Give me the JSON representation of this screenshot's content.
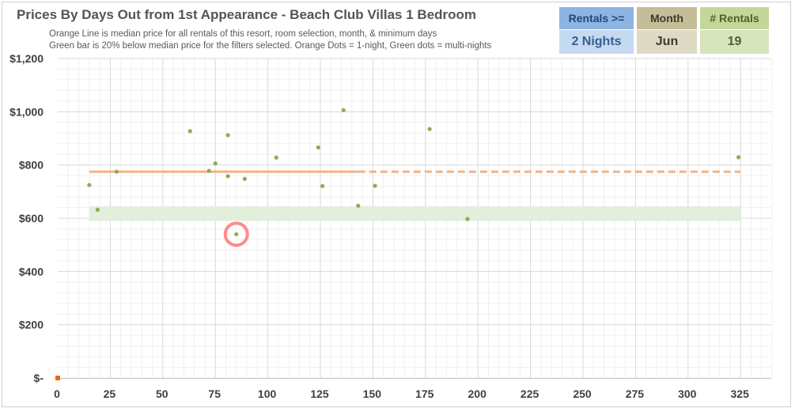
{
  "chart_title": "Prices By Days Out from 1st Appearance - Beach Club Villas 1 Bedroom",
  "subtitle_lines": [
    "Orange Line is median price for all rentals of this resort, room selection, month, & minimum days",
    "Green bar is 20% below median price for the filters selected. Orange Dots = 1-night, Green dots = multi-nights"
  ],
  "filters": {
    "rentals": {
      "label": "Rentals >=",
      "value": "2 Nights",
      "header_color": "#8db4e2",
      "header_text_color": "#1f497d",
      "value_color": "#c5d9f1",
      "value_text_color": "#366092"
    },
    "month": {
      "label": "Month",
      "value": "Jun",
      "header_color": "#c4bd97",
      "header_text_color": "#3b3b2f",
      "value_color": "#ddd9c4",
      "value_text_color": "#3b3b2f"
    },
    "count": {
      "label": "# Rentals",
      "value": "19",
      "header_color": "#c4d79b",
      "header_text_color": "#4f6228",
      "value_color": "#d8e4bc",
      "value_text_color": "#4f6228"
    }
  },
  "chart_data": {
    "type": "scatter",
    "title": "Prices By Days Out from 1st Appearance - Beach Club Villas 1 Bedroom",
    "xlim": [
      0,
      340
    ],
    "ylim": [
      0,
      1200
    ],
    "x_ticks": [
      0,
      25,
      50,
      75,
      100,
      125,
      150,
      175,
      200,
      225,
      250,
      275,
      300,
      325
    ],
    "y_ticks": [
      0,
      200,
      400,
      600,
      800,
      1000,
      1200
    ],
    "y_tick_labels": [
      "$-",
      "$200",
      "$400",
      "$600",
      "$800",
      "$1,000",
      "$1,200"
    ],
    "grid": true,
    "median_line": {
      "value": 775,
      "x_start": 15,
      "x_solid_end": 143,
      "x_end": 325,
      "color": "#f4b183"
    },
    "discount_band": {
      "low": 590,
      "high": 645,
      "x_start": 15,
      "x_end": 325,
      "color": "#e2efda"
    },
    "series": [
      {
        "type": "multi-night",
        "color": "#8faa59",
        "points": [
          [
            15,
            725
          ],
          [
            19,
            632
          ],
          [
            28,
            775
          ],
          [
            63,
            927
          ],
          [
            72,
            778
          ],
          [
            75,
            806
          ],
          [
            81,
            912
          ],
          [
            81,
            758
          ],
          [
            85,
            540
          ],
          [
            89,
            748
          ],
          [
            104,
            828
          ],
          [
            124,
            866
          ],
          [
            126,
            721
          ],
          [
            136,
            1006
          ],
          [
            143,
            647
          ],
          [
            151,
            722
          ],
          [
            177,
            935
          ],
          [
            195,
            597
          ],
          [
            324,
            829
          ]
        ]
      },
      {
        "type": "1-night",
        "color": "#e46c0a",
        "points": [
          [
            0,
            0
          ]
        ]
      }
    ],
    "highlight": {
      "x": 85,
      "y": 540,
      "color": "#ff8b8b"
    }
  }
}
